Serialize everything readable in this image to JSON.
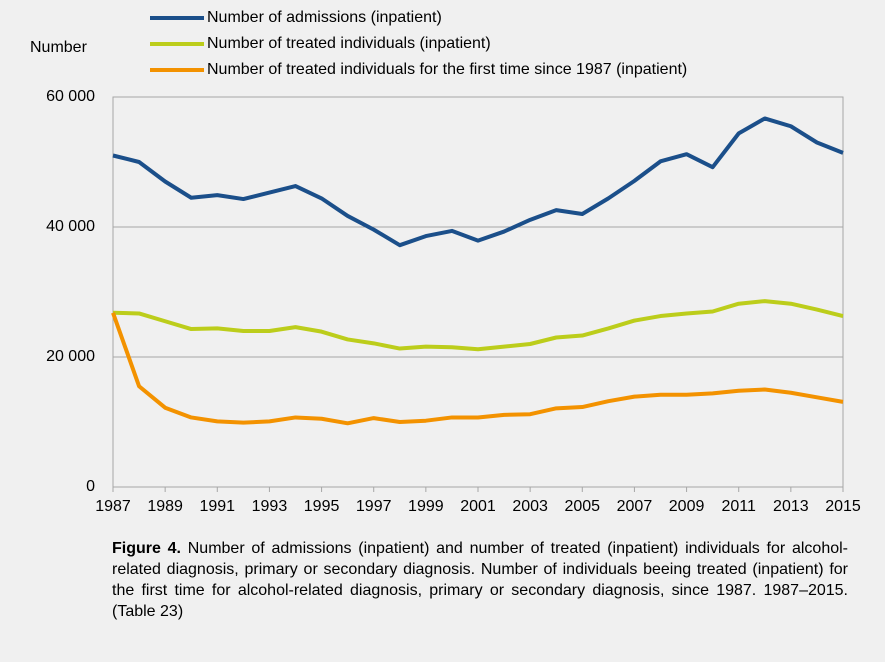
{
  "chart_data": {
    "type": "line",
    "y_axis_label": "Number",
    "x": [
      1987,
      1988,
      1989,
      1990,
      1991,
      1992,
      1993,
      1994,
      1995,
      1996,
      1997,
      1998,
      1999,
      2000,
      2001,
      2002,
      2003,
      2004,
      2005,
      2006,
      2007,
      2008,
      2009,
      2010,
      2011,
      2012,
      2013,
      2014,
      2015
    ],
    "xlim": [
      1987,
      2015
    ],
    "xticks": [
      1987,
      1989,
      1991,
      1993,
      1995,
      1997,
      1999,
      2001,
      2003,
      2005,
      2007,
      2009,
      2011,
      2013,
      2015
    ],
    "ylim": [
      0,
      60000
    ],
    "yticks": [
      0,
      {
        "value": 20000,
        "label": "20 000"
      },
      {
        "value": 40000,
        "label": "40 000"
      },
      {
        "value": 60000,
        "label": "60 000"
      }
    ],
    "grid": true,
    "legend": "top",
    "series": [
      {
        "name": "Number of admissions (inpatient)",
        "color": "#1b4f8a",
        "values": [
          51000,
          50000,
          47000,
          44500,
          44900,
          44300,
          45300,
          46300,
          44400,
          41700,
          39600,
          37200,
          38600,
          39400,
          37900,
          39300,
          41100,
          42600,
          42000,
          44400,
          47100,
          50100,
          51200,
          49200,
          54400,
          56700,
          55500,
          53000,
          51400
        ]
      },
      {
        "name": "Number of treated individuals (inpatient)",
        "color": "#bccd1b",
        "values": [
          26800,
          26700,
          25500,
          24300,
          24400,
          24000,
          24000,
          24600,
          23900,
          22700,
          22100,
          21300,
          21600,
          21500,
          21200,
          21600,
          22000,
          23000,
          23300,
          24400,
          25600,
          26300,
          26700,
          27000,
          28200,
          28600,
          28200,
          27300,
          26300
        ]
      },
      {
        "name": "Number of treated individuals for the first time since 1987 (inpatient)",
        "color": "#f39200",
        "values": [
          26800,
          15500,
          12200,
          10700,
          10100,
          9900,
          10100,
          10700,
          10500,
          9800,
          10600,
          10000,
          10200,
          10700,
          10700,
          11100,
          11200,
          12100,
          12300,
          13200,
          13900,
          14200,
          14200,
          14400,
          14800,
          15000,
          14500,
          13800,
          13100
        ]
      }
    ],
    "caption_label": "Figure 4.",
    "caption_text": "Number of admissions (inpatient) and number of treated (inpatient) individuals for alcohol-related diagnosis, primary or secondary diagnosis. Number of individuals beeing treated (inpatient) for the first time for alcohol-related diagnosis, primary or secondary diagnosis, since 1987. 1987–2015. (Table 23)"
  }
}
